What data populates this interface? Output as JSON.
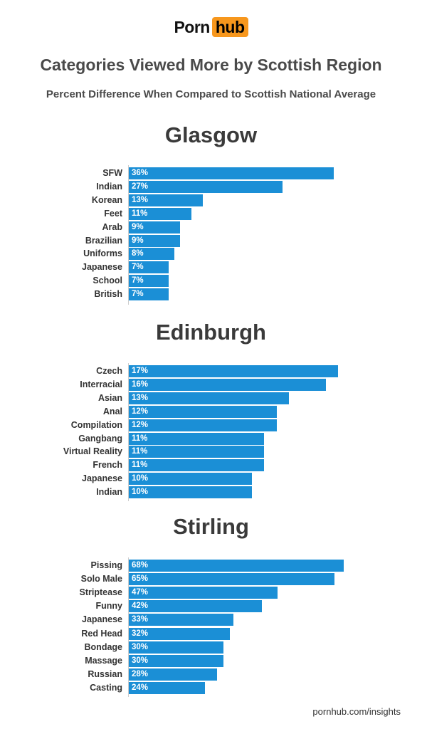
{
  "logo": {
    "left": "Porn",
    "right": "hub"
  },
  "title": "Categories Viewed More by Scottish Region",
  "subtitle": "Percent Difference When Compared to Scottish National Average",
  "footer": "pornhub.com/insights",
  "colors": {
    "bar": "#1b8fd6",
    "logo_accent": "#f7971d",
    "text": "#4a4a4a"
  },
  "chart_data": [
    {
      "type": "bar",
      "orientation": "horizontal",
      "title": "Glasgow",
      "categories": [
        "SFW",
        "Indian",
        "Korean",
        "Feet",
        "Arab",
        "Brazilian",
        "Uniforms",
        "Japanese",
        "School",
        "British"
      ],
      "values": [
        36,
        27,
        13,
        11,
        9,
        9,
        8,
        7,
        7,
        7
      ],
      "labels": [
        "36%",
        "27%",
        "13%",
        "11%",
        "9%",
        "9%",
        "8%",
        "7%",
        "7%",
        "7%"
      ],
      "xlim": [
        0,
        36
      ]
    },
    {
      "type": "bar",
      "orientation": "horizontal",
      "title": "Edinburgh",
      "categories": [
        "Czech",
        "Interracial",
        "Asian",
        "Anal",
        "Compilation",
        "Gangbang",
        "Virtual Reality",
        "French",
        "Japanese",
        "Indian"
      ],
      "values": [
        17,
        16,
        13,
        12,
        12,
        11,
        11,
        11,
        10,
        10
      ],
      "labels": [
        "17%",
        "16%",
        "13%",
        "12%",
        "12%",
        "11%",
        "11%",
        "11%",
        "10%",
        "10%"
      ],
      "xlim": [
        0,
        17
      ]
    },
    {
      "type": "bar",
      "orientation": "horizontal",
      "title": "Stirling",
      "categories": [
        "Pissing",
        "Solo Male",
        "Striptease",
        "Funny",
        "Japanese",
        "Red Head",
        "Bondage",
        "Massage",
        "Russian",
        "Casting"
      ],
      "values": [
        68,
        65,
        47,
        42,
        33,
        32,
        30,
        30,
        28,
        24
      ],
      "labels": [
        "68%",
        "65%",
        "47%",
        "42%",
        "33%",
        "32%",
        "30%",
        "30%",
        "28%",
        "24%"
      ],
      "xlim": [
        0,
        68
      ]
    }
  ]
}
